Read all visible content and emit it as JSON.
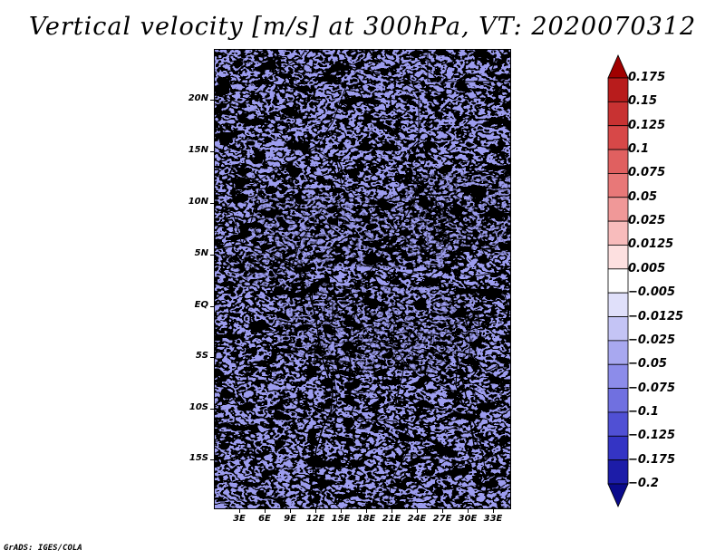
{
  "title": "Vertical velocity [m/s] at 300hPa, VT: 2020070312",
  "footer": "GrADS: IGES/COLA",
  "map": {
    "lat_labels": [
      "20N",
      "15N",
      "10N",
      "5N",
      "EQ",
      "5S",
      "10S",
      "15S"
    ],
    "lon_labels": [
      "3E",
      "6E",
      "9E",
      "12E",
      "15E",
      "18E",
      "21E",
      "24E",
      "27E",
      "30E",
      "33E"
    ],
    "colors": {
      "border": "#000000"
    }
  },
  "colorbar": {
    "labels": [
      "0.175",
      "0.15",
      "0.125",
      "0.1",
      "0.075",
      "0.05",
      "0.025",
      "0.0125",
      "0.005",
      "−0.005",
      "−0.0125",
      "−0.025",
      "−0.05",
      "−0.075",
      "−0.1",
      "−0.125",
      "−0.175",
      "−0.2"
    ],
    "colors": [
      "#a00000",
      "#b81c1c",
      "#c83232",
      "#d74848",
      "#e06060",
      "#e87878",
      "#f09898",
      "#f8bcbc",
      "#fde0e0",
      "#ffffff",
      "#e0e0fa",
      "#c4c4f5",
      "#a8a8f0",
      "#8c8cea",
      "#7070e0",
      "#5050d4",
      "#3434c4",
      "#1c1ca8",
      "#0a0a8c"
    ]
  }
}
